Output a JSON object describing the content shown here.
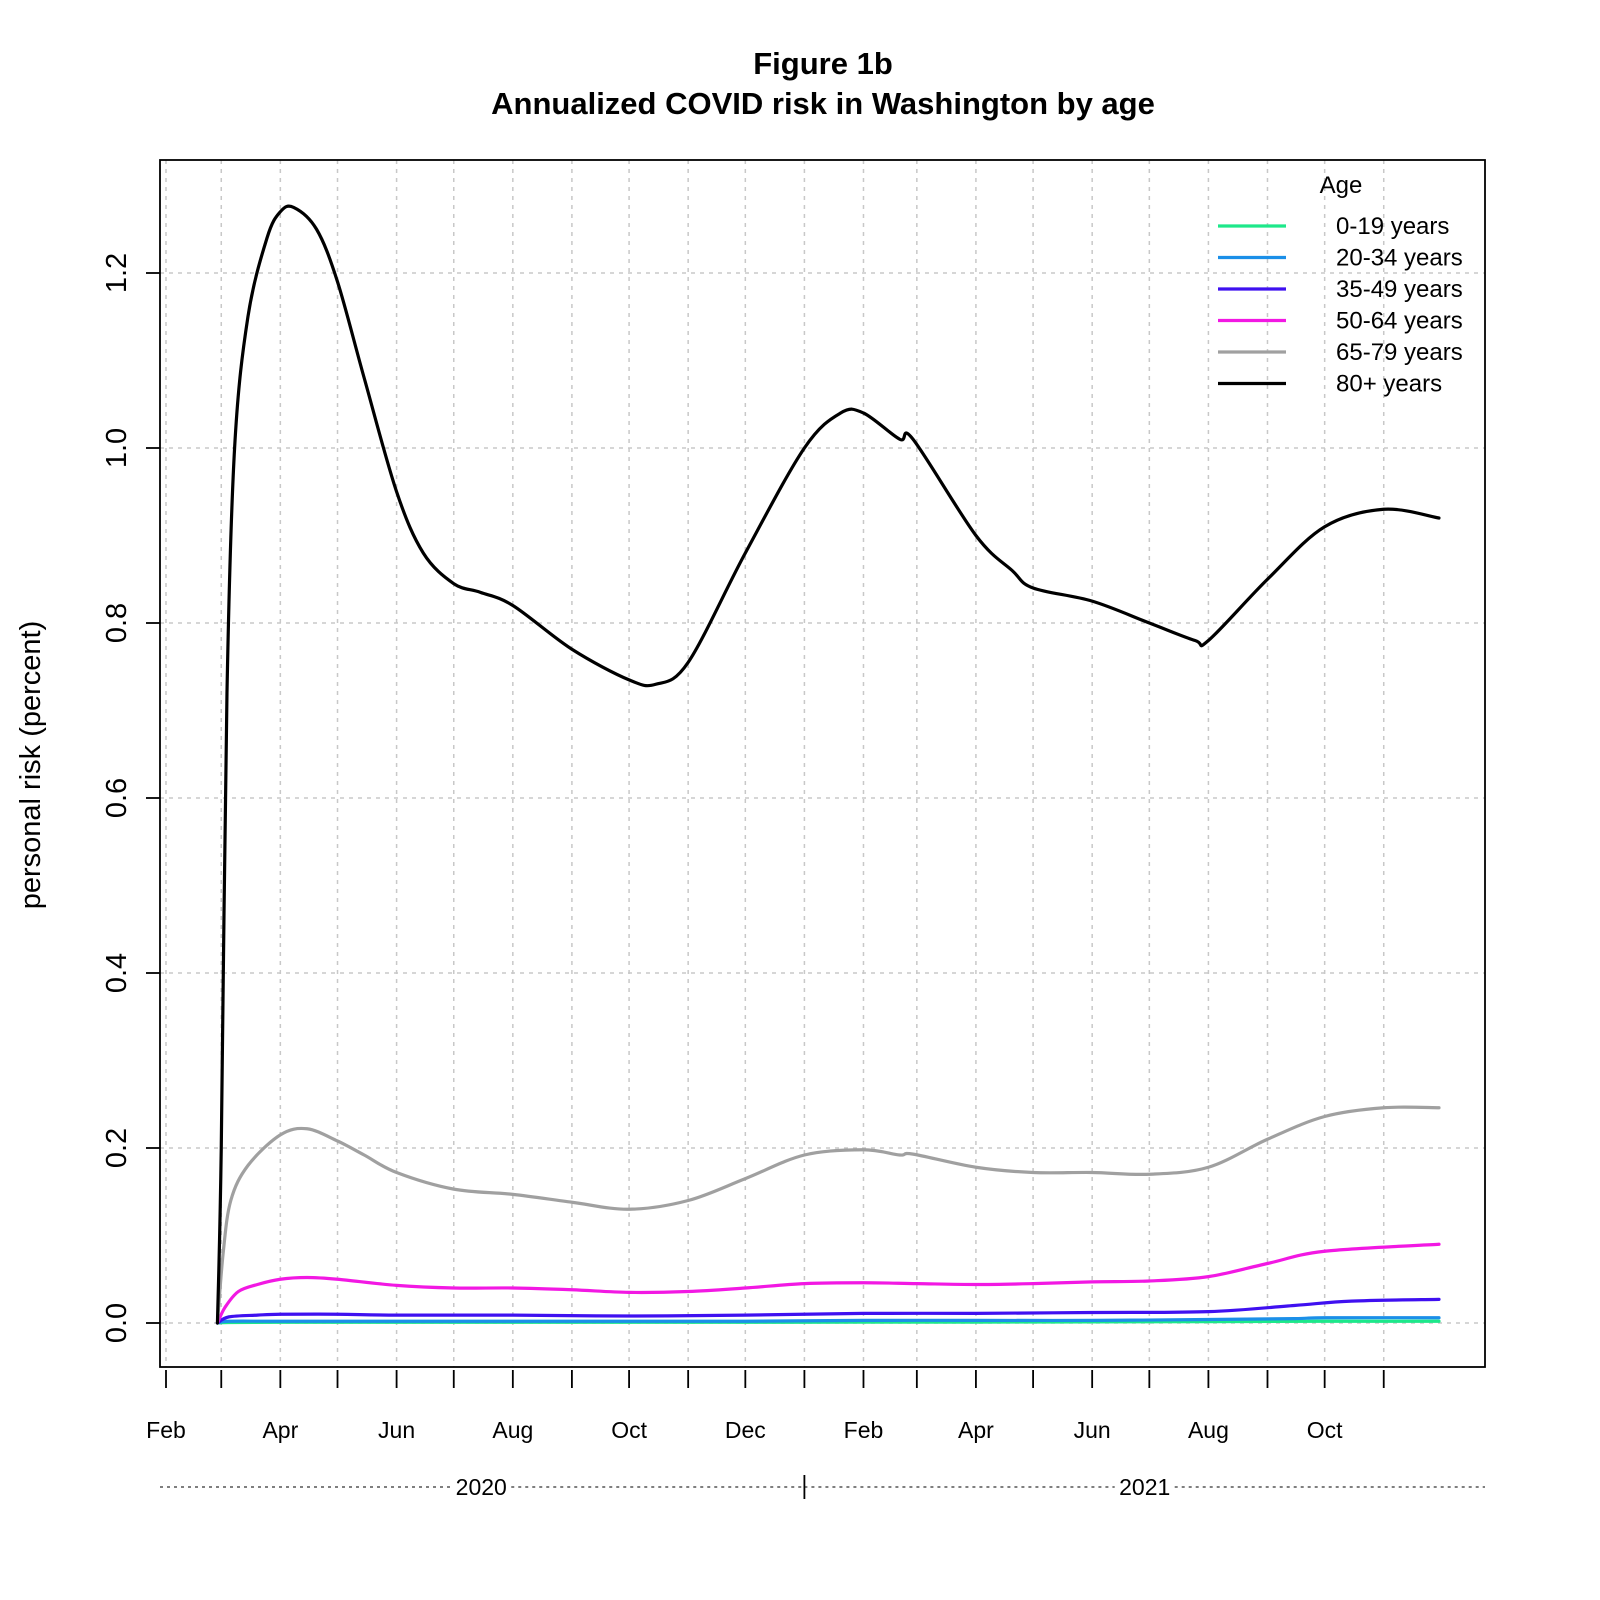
{
  "chart_data": {
    "type": "line",
    "title": "Figure 1b",
    "subtitle": "Annualized COVID risk in Washington by age",
    "xlabel": "",
    "ylabel": "personal risk (percent)",
    "xlim": [
      "2020-02-01",
      "2021-11-30"
    ],
    "ylim": [
      -0.03,
      1.35
    ],
    "yticks": [
      0.0,
      0.2,
      0.4,
      0.6,
      0.8,
      1.0,
      1.2
    ],
    "ytick_labels": [
      "0.0",
      "0.2",
      "0.4",
      "0.6",
      "0.8",
      "1.0",
      "1.2"
    ],
    "x_month_labels": [
      {
        "date": "2020-02-01",
        "label": "Feb"
      },
      {
        "date": "2020-04-01",
        "label": "Apr"
      },
      {
        "date": "2020-06-01",
        "label": "Jun"
      },
      {
        "date": "2020-08-01",
        "label": "Aug"
      },
      {
        "date": "2020-10-01",
        "label": "Oct"
      },
      {
        "date": "2020-12-01",
        "label": "Dec"
      },
      {
        "date": "2021-02-01",
        "label": "Feb"
      },
      {
        "date": "2021-04-01",
        "label": "Apr"
      },
      {
        "date": "2021-06-01",
        "label": "Jun"
      },
      {
        "date": "2021-08-01",
        "label": "Aug"
      },
      {
        "date": "2021-10-01",
        "label": "Oct"
      }
    ],
    "x_minor_ticks": [
      "2020-03-01",
      "2020-05-01",
      "2020-07-01",
      "2020-09-01",
      "2020-11-01",
      "2021-01-01",
      "2021-03-01",
      "2021-05-01",
      "2021-07-01",
      "2021-09-01",
      "2021-11-01"
    ],
    "x_year_labels": [
      {
        "label": "2020",
        "from": "2020-01-01",
        "to": "2020-12-31"
      },
      {
        "label": "2021",
        "from": "2021-01-01",
        "to": "2021-12-31"
      }
    ],
    "grid": true,
    "legend": {
      "title": "Age",
      "position": "top-right"
    },
    "series": [
      {
        "name": "0-19 years",
        "color": "#1de88a",
        "points": [
          [
            "2020-02-28",
            0.0
          ],
          [
            "2020-03-05",
            0.0005
          ],
          [
            "2020-04-01",
            0.0008
          ],
          [
            "2020-06-01",
            0.0008
          ],
          [
            "2020-08-01",
            0.0008
          ],
          [
            "2020-10-01",
            0.0008
          ],
          [
            "2020-12-01",
            0.0008
          ],
          [
            "2021-02-01",
            0.001
          ],
          [
            "2021-04-01",
            0.001
          ],
          [
            "2021-06-01",
            0.0012
          ],
          [
            "2021-08-01",
            0.0015
          ],
          [
            "2021-10-01",
            0.002
          ],
          [
            "2021-11-30",
            0.002
          ]
        ]
      },
      {
        "name": "20-34 years",
        "color": "#1b8fe8",
        "points": [
          [
            "2020-02-28",
            0.0
          ],
          [
            "2020-03-05",
            0.002
          ],
          [
            "2020-04-01",
            0.002
          ],
          [
            "2020-06-01",
            0.002
          ],
          [
            "2020-08-01",
            0.002
          ],
          [
            "2020-10-01",
            0.002
          ],
          [
            "2020-12-01",
            0.002
          ],
          [
            "2021-02-01",
            0.003
          ],
          [
            "2021-04-01",
            0.003
          ],
          [
            "2021-06-01",
            0.003
          ],
          [
            "2021-08-01",
            0.004
          ],
          [
            "2021-09-15",
            0.005
          ],
          [
            "2021-10-01",
            0.006
          ],
          [
            "2021-11-30",
            0.006
          ]
        ]
      },
      {
        "name": "35-49 years",
        "color": "#3f10f0",
        "points": [
          [
            "2020-02-28",
            0.0
          ],
          [
            "2020-03-05",
            0.007
          ],
          [
            "2020-03-20",
            0.009
          ],
          [
            "2020-04-01",
            0.01
          ],
          [
            "2020-05-01",
            0.01
          ],
          [
            "2020-06-01",
            0.009
          ],
          [
            "2020-08-01",
            0.009
          ],
          [
            "2020-10-01",
            0.008
          ],
          [
            "2020-12-01",
            0.009
          ],
          [
            "2021-02-01",
            0.011
          ],
          [
            "2021-04-01",
            0.011
          ],
          [
            "2021-06-01",
            0.012
          ],
          [
            "2021-08-01",
            0.013
          ],
          [
            "2021-09-15",
            0.02
          ],
          [
            "2021-10-15",
            0.025
          ],
          [
            "2021-11-30",
            0.027
          ]
        ]
      },
      {
        "name": "50-64 years",
        "color": "#f218e3",
        "points": [
          [
            "2020-02-28",
            0.0
          ],
          [
            "2020-03-03",
            0.018
          ],
          [
            "2020-03-10",
            0.036
          ],
          [
            "2020-03-20",
            0.044
          ],
          [
            "2020-04-01",
            0.05
          ],
          [
            "2020-04-15",
            0.052
          ],
          [
            "2020-05-01",
            0.05
          ],
          [
            "2020-06-01",
            0.043
          ],
          [
            "2020-07-01",
            0.04
          ],
          [
            "2020-08-01",
            0.04
          ],
          [
            "2020-09-01",
            0.038
          ],
          [
            "2020-10-01",
            0.035
          ],
          [
            "2020-11-01",
            0.036
          ],
          [
            "2020-12-01",
            0.04
          ],
          [
            "2021-01-01",
            0.045
          ],
          [
            "2021-02-01",
            0.046
          ],
          [
            "2021-03-01",
            0.045
          ],
          [
            "2021-04-01",
            0.044
          ],
          [
            "2021-05-01",
            0.045
          ],
          [
            "2021-06-01",
            0.047
          ],
          [
            "2021-07-01",
            0.048
          ],
          [
            "2021-08-01",
            0.053
          ],
          [
            "2021-09-01",
            0.068
          ],
          [
            "2021-10-01",
            0.082
          ],
          [
            "2021-11-30",
            0.09
          ]
        ]
      },
      {
        "name": "65-79 years",
        "color": "#a0a0a0",
        "points": [
          [
            "2020-02-28",
            0.0
          ],
          [
            "2020-03-02",
            0.08
          ],
          [
            "2020-03-06",
            0.14
          ],
          [
            "2020-03-15",
            0.18
          ],
          [
            "2020-04-01",
            0.215
          ],
          [
            "2020-04-15",
            0.222
          ],
          [
            "2020-05-01",
            0.208
          ],
          [
            "2020-05-15",
            0.192
          ],
          [
            "2020-06-01",
            0.172
          ],
          [
            "2020-07-01",
            0.153
          ],
          [
            "2020-08-01",
            0.147
          ],
          [
            "2020-09-01",
            0.138
          ],
          [
            "2020-10-01",
            0.13
          ],
          [
            "2020-11-01",
            0.14
          ],
          [
            "2020-12-01",
            0.165
          ],
          [
            "2021-01-01",
            0.192
          ],
          [
            "2021-02-01",
            0.198
          ],
          [
            "2021-02-20",
            0.192
          ],
          [
            "2021-02-27",
            0.193
          ],
          [
            "2021-04-01",
            0.178
          ],
          [
            "2021-05-01",
            0.172
          ],
          [
            "2021-06-01",
            0.172
          ],
          [
            "2021-07-01",
            0.17
          ],
          [
            "2021-08-01",
            0.178
          ],
          [
            "2021-09-01",
            0.21
          ],
          [
            "2021-10-01",
            0.236
          ],
          [
            "2021-11-01",
            0.246
          ],
          [
            "2021-11-30",
            0.246
          ]
        ]
      },
      {
        "name": "80+ years",
        "color": "#000000",
        "points": [
          [
            "2020-02-28",
            0.0
          ],
          [
            "2020-03-01",
            0.2
          ],
          [
            "2020-03-04",
            0.72
          ],
          [
            "2020-03-08",
            1.0
          ],
          [
            "2020-03-15",
            1.15
          ],
          [
            "2020-03-25",
            1.24
          ],
          [
            "2020-04-01",
            1.27
          ],
          [
            "2020-04-08",
            1.275
          ],
          [
            "2020-04-20",
            1.25
          ],
          [
            "2020-05-01",
            1.19
          ],
          [
            "2020-05-15",
            1.08
          ],
          [
            "2020-06-01",
            0.95
          ],
          [
            "2020-06-15",
            0.88
          ],
          [
            "2020-07-01",
            0.845
          ],
          [
            "2020-07-15",
            0.835
          ],
          [
            "2020-08-01",
            0.82
          ],
          [
            "2020-09-01",
            0.77
          ],
          [
            "2020-10-01",
            0.735
          ],
          [
            "2020-10-15",
            0.73
          ],
          [
            "2020-11-01",
            0.755
          ],
          [
            "2020-12-01",
            0.88
          ],
          [
            "2021-01-01",
            1.0
          ],
          [
            "2021-01-20",
            1.04
          ],
          [
            "2021-02-01",
            1.04
          ],
          [
            "2021-02-20",
            1.01
          ],
          [
            "2021-02-27",
            1.01
          ],
          [
            "2021-04-01",
            0.9
          ],
          [
            "2021-04-20",
            0.86
          ],
          [
            "2021-05-01",
            0.84
          ],
          [
            "2021-06-01",
            0.825
          ],
          [
            "2021-07-01",
            0.8
          ],
          [
            "2021-07-25",
            0.78
          ],
          [
            "2021-08-01",
            0.78
          ],
          [
            "2021-09-01",
            0.85
          ],
          [
            "2021-10-01",
            0.91
          ],
          [
            "2021-11-01",
            0.93
          ],
          [
            "2021-11-30",
            0.92
          ]
        ]
      }
    ]
  }
}
